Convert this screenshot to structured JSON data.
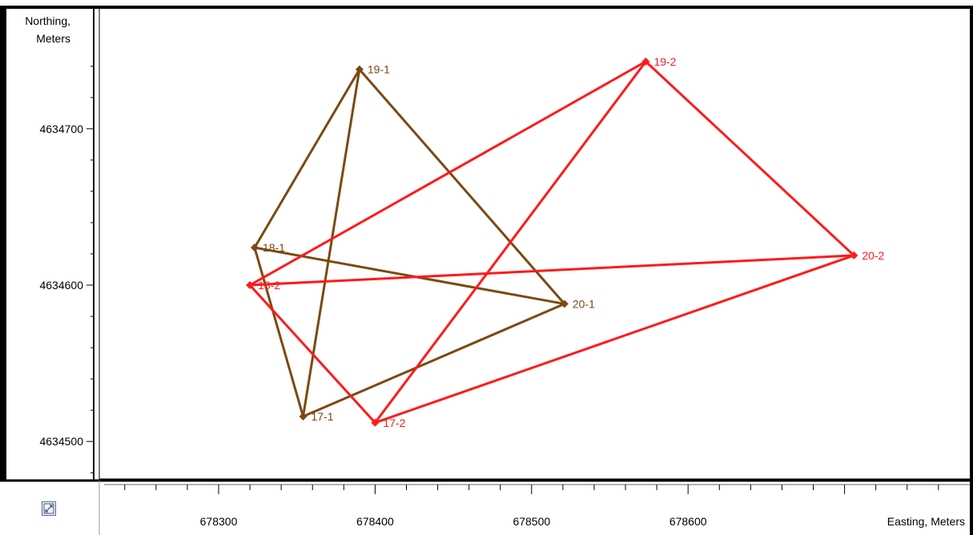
{
  "chart_data": {
    "type": "line",
    "xlabel": "Easting, Meters",
    "ylabel_line1": "Northing,",
    "ylabel_line2": "Meters",
    "xlim": [
      678225,
      678575
    ],
    "ylim": [
      4634475,
      4634750
    ],
    "x_ticks": [
      678300,
      678400,
      678500,
      678600
    ],
    "y_ticks": [
      4634500,
      4634600,
      4634700
    ],
    "x_minor_step": 20,
    "y_minor_step": 20,
    "series": [
      {
        "color": "#7a4a12",
        "points": [
          {
            "label": "17-1",
            "x": 678354,
            "y": 4634516
          },
          {
            "label": "18-1",
            "x": 678323,
            "y": 4634624
          },
          {
            "label": "19-1",
            "x": 678390,
            "y": 4634738
          },
          {
            "label": "20-1",
            "x": 678521,
            "y": 4634588
          }
        ],
        "segments": [
          [
            0,
            1
          ],
          [
            0,
            2
          ],
          [
            0,
            3
          ],
          [
            1,
            2
          ],
          [
            1,
            3
          ],
          [
            2,
            3
          ]
        ]
      },
      {
        "color": "#ff1a1a",
        "points": [
          {
            "label": "17-2",
            "x": 678400,
            "y": 4634512
          },
          {
            "label": "18-2",
            "x": 678320,
            "y": 4634600
          },
          {
            "label": "19-2",
            "x": 678573,
            "y": 4634743
          },
          {
            "label": "20-2",
            "x": 678706,
            "y": 4634619
          }
        ],
        "segments": [
          [
            0,
            1
          ],
          [
            0,
            2
          ],
          [
            0,
            3
          ],
          [
            1,
            2
          ],
          [
            1,
            3
          ],
          [
            2,
            3
          ]
        ]
      }
    ]
  },
  "toolbar": {
    "zoom_icon": "zoom-extent-icon"
  }
}
